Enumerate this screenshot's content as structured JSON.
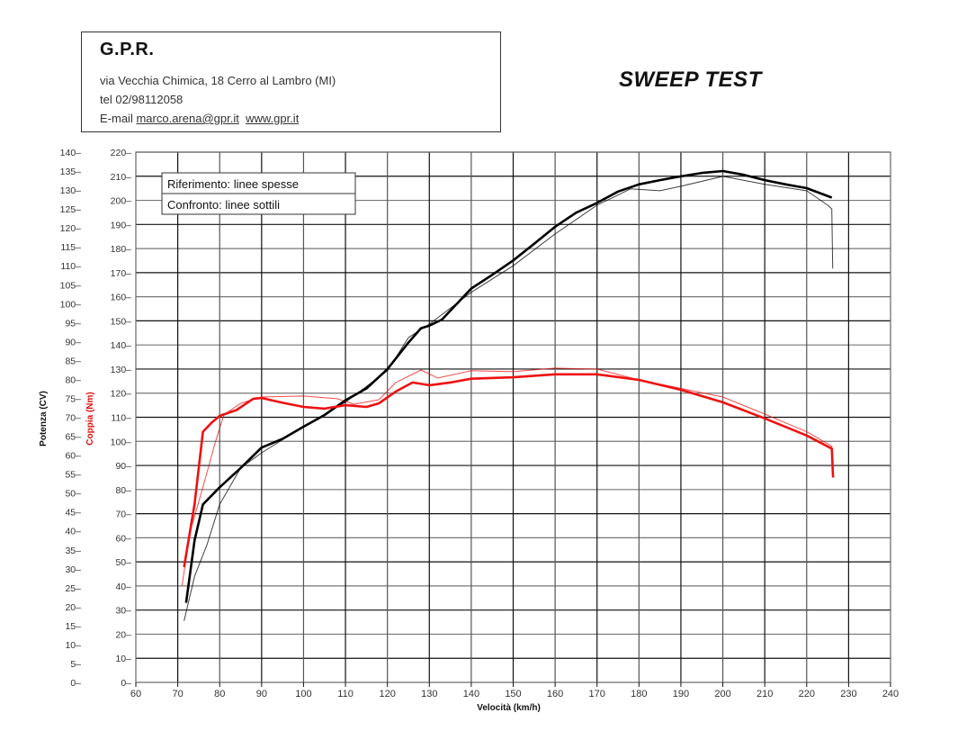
{
  "header": {
    "company": "G.P.R.",
    "address": "via Vecchia Chimica, 18 Cerro al Lambro (MI)",
    "phone": "tel 02/98112058",
    "email_label": "E-mail",
    "email": "marco.arena@gpr.it",
    "website": "www.gpr.it"
  },
  "title": "SWEEP TEST",
  "chart_data": {
    "type": "line",
    "xlabel": "Velocità (km/h)",
    "ylabel_left": "Potenza (CV)",
    "ylabel_right": "Coppia (Nm)",
    "xlim": [
      60,
      240
    ],
    "xticks": [
      60,
      70,
      80,
      90,
      100,
      110,
      120,
      130,
      140,
      150,
      160,
      170,
      180,
      190,
      200,
      210,
      220,
      230,
      240
    ],
    "ylim_left": [
      0,
      140
    ],
    "yticks_left": [
      0,
      5,
      10,
      15,
      20,
      25,
      30,
      35,
      40,
      45,
      50,
      55,
      60,
      65,
      70,
      75,
      80,
      85,
      90,
      95,
      100,
      105,
      110,
      115,
      120,
      125,
      130,
      135,
      140
    ],
    "ylim_right": [
      0,
      220
    ],
    "yticks_right": [
      0,
      10,
      20,
      30,
      40,
      50,
      60,
      70,
      80,
      90,
      100,
      110,
      120,
      130,
      140,
      150,
      160,
      170,
      180,
      190,
      200,
      210,
      220
    ],
    "grid": true,
    "legend": {
      "position": "top-left",
      "entries": [
        "Riferimento: linee spesse",
        "Confronto: linee sottili"
      ]
    },
    "colors": {
      "power": "#000000",
      "torque": "#ee1111",
      "torque_label": "#e01010"
    },
    "series": [
      {
        "quantity": "power",
        "axis": "left",
        "style": "thick",
        "x": [
          72,
          74,
          76,
          80,
          85,
          90,
          95,
          100,
          105,
          110,
          115,
          120,
          125,
          128,
          130,
          133,
          140,
          145,
          150,
          155,
          160,
          165,
          170,
          175,
          180,
          185,
          190,
          195,
          200,
          205,
          210,
          215,
          220,
          226
        ],
        "y": [
          21,
          37.5,
          47,
          51.5,
          56.6,
          62,
          64.3,
          67.5,
          70.6,
          74.5,
          77.6,
          82.7,
          89.7,
          93.5,
          94.2,
          95.8,
          104,
          107.6,
          111.4,
          115.8,
          120.3,
          124,
          126.6,
          129.6,
          131.5,
          132.6,
          133.6,
          134.5,
          135,
          134,
          132.6,
          131.5,
          130.5,
          128
        ]
      },
      {
        "quantity": "power",
        "axis": "left",
        "style": "thin",
        "x": [
          71.5,
          74,
          77,
          80,
          85,
          90,
          100,
          110,
          120,
          125,
          130,
          140,
          150,
          160,
          170,
          178,
          185,
          190,
          200,
          210,
          220,
          225,
          226,
          226.2
        ],
        "y": [
          16.2,
          28,
          36.4,
          47,
          56.6,
          60.6,
          67.5,
          74,
          82.3,
          91,
          94.6,
          103,
          110,
          118.4,
          126,
          130.3,
          129.8,
          131,
          133.6,
          131.5,
          129.8,
          126,
          125,
          109.3
        ]
      },
      {
        "quantity": "torque",
        "axis": "right",
        "style": "thick",
        "x": [
          71.5,
          74,
          76,
          78,
          80,
          84,
          88,
          90,
          95,
          100,
          105,
          110,
          115,
          118,
          122,
          126,
          130,
          135,
          140,
          150,
          160,
          170,
          180,
          190,
          200,
          210,
          220,
          226,
          226.3
        ],
        "y": [
          47.8,
          74,
          104,
          107.6,
          110.6,
          113,
          117.7,
          118,
          116,
          114.3,
          113.6,
          115,
          114.3,
          115.8,
          120.7,
          124.4,
          123.3,
          124.4,
          126,
          126.6,
          127.8,
          127.8,
          125.5,
          121.4,
          116.2,
          109.5,
          102.4,
          97,
          85
        ]
      },
      {
        "quantity": "torque",
        "axis": "right",
        "style": "thin",
        "x": [
          71,
          73,
          76,
          79,
          81,
          85,
          90,
          100,
          108,
          112,
          118,
          122,
          128,
          132,
          140,
          150,
          160,
          170,
          180,
          190,
          200,
          210,
          220,
          226,
          226.3
        ],
        "y": [
          40,
          62.8,
          81,
          100,
          111,
          115.8,
          118.4,
          118.8,
          117.7,
          115.4,
          117.3,
          124.4,
          129.6,
          126.3,
          129.3,
          128.9,
          130.4,
          130,
          125.5,
          122,
          118.4,
          111.3,
          104,
          98,
          85
        ]
      }
    ]
  }
}
